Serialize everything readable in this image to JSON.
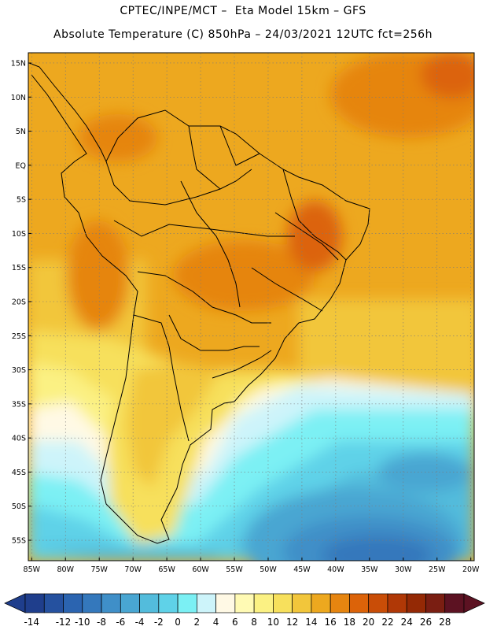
{
  "header": {
    "line1": "CPTEC/INPE/MCT –  Eta Model 15km – GFS",
    "line2": "Absolute Temperature (C) 850hPa – 24/03/2021 12UTC fct=256h"
  },
  "map": {
    "lon_range": [
      -85.5,
      -19.5
    ],
    "lat_range": [
      -58,
      16.5
    ],
    "lat_labels": [
      "15N",
      "10N",
      "5N",
      "EQ",
      "5S",
      "10S",
      "15S",
      "20S",
      "25S",
      "30S",
      "35S",
      "40S",
      "45S",
      "50S",
      "55S"
    ],
    "lat_values": [
      15,
      10,
      5,
      0,
      -5,
      -10,
      -15,
      -20,
      -25,
      -30,
      -35,
      -40,
      -45,
      -50,
      -55
    ],
    "lon_labels": [
      "85W",
      "80W",
      "75W",
      "70W",
      "65W",
      "60W",
      "55W",
      "50W",
      "45W",
      "40W",
      "35W",
      "30W",
      "25W",
      "20W"
    ],
    "lon_values": [
      -85,
      -80,
      -75,
      -70,
      -65,
      -60,
      -55,
      -50,
      -45,
      -40,
      -35,
      -30,
      -25,
      -20
    ]
  },
  "colorbar": {
    "labels": [
      "-14",
      "-12",
      "-10",
      "-8",
      "-6",
      "-4",
      "-2",
      "0",
      "2",
      "4",
      "6",
      "8",
      "10",
      "12",
      "14",
      "16",
      "18",
      "20",
      "22",
      "24",
      "26",
      "28"
    ],
    "colors": [
      "#1f3e8c",
      "#25519f",
      "#2b64b0",
      "#3478bc",
      "#3f8fc8",
      "#49a6d2",
      "#53bcdc",
      "#5fd2e8",
      "#7bf0f4",
      "#cdf4fa",
      "#fff9e5",
      "#fffab4",
      "#fbf183",
      "#f7e05c",
      "#f2c63b",
      "#eda81f",
      "#e68510",
      "#dc6309",
      "#c94d07",
      "#b03806",
      "#942905",
      "#7a1e12",
      "#5c1222"
    ]
  }
}
